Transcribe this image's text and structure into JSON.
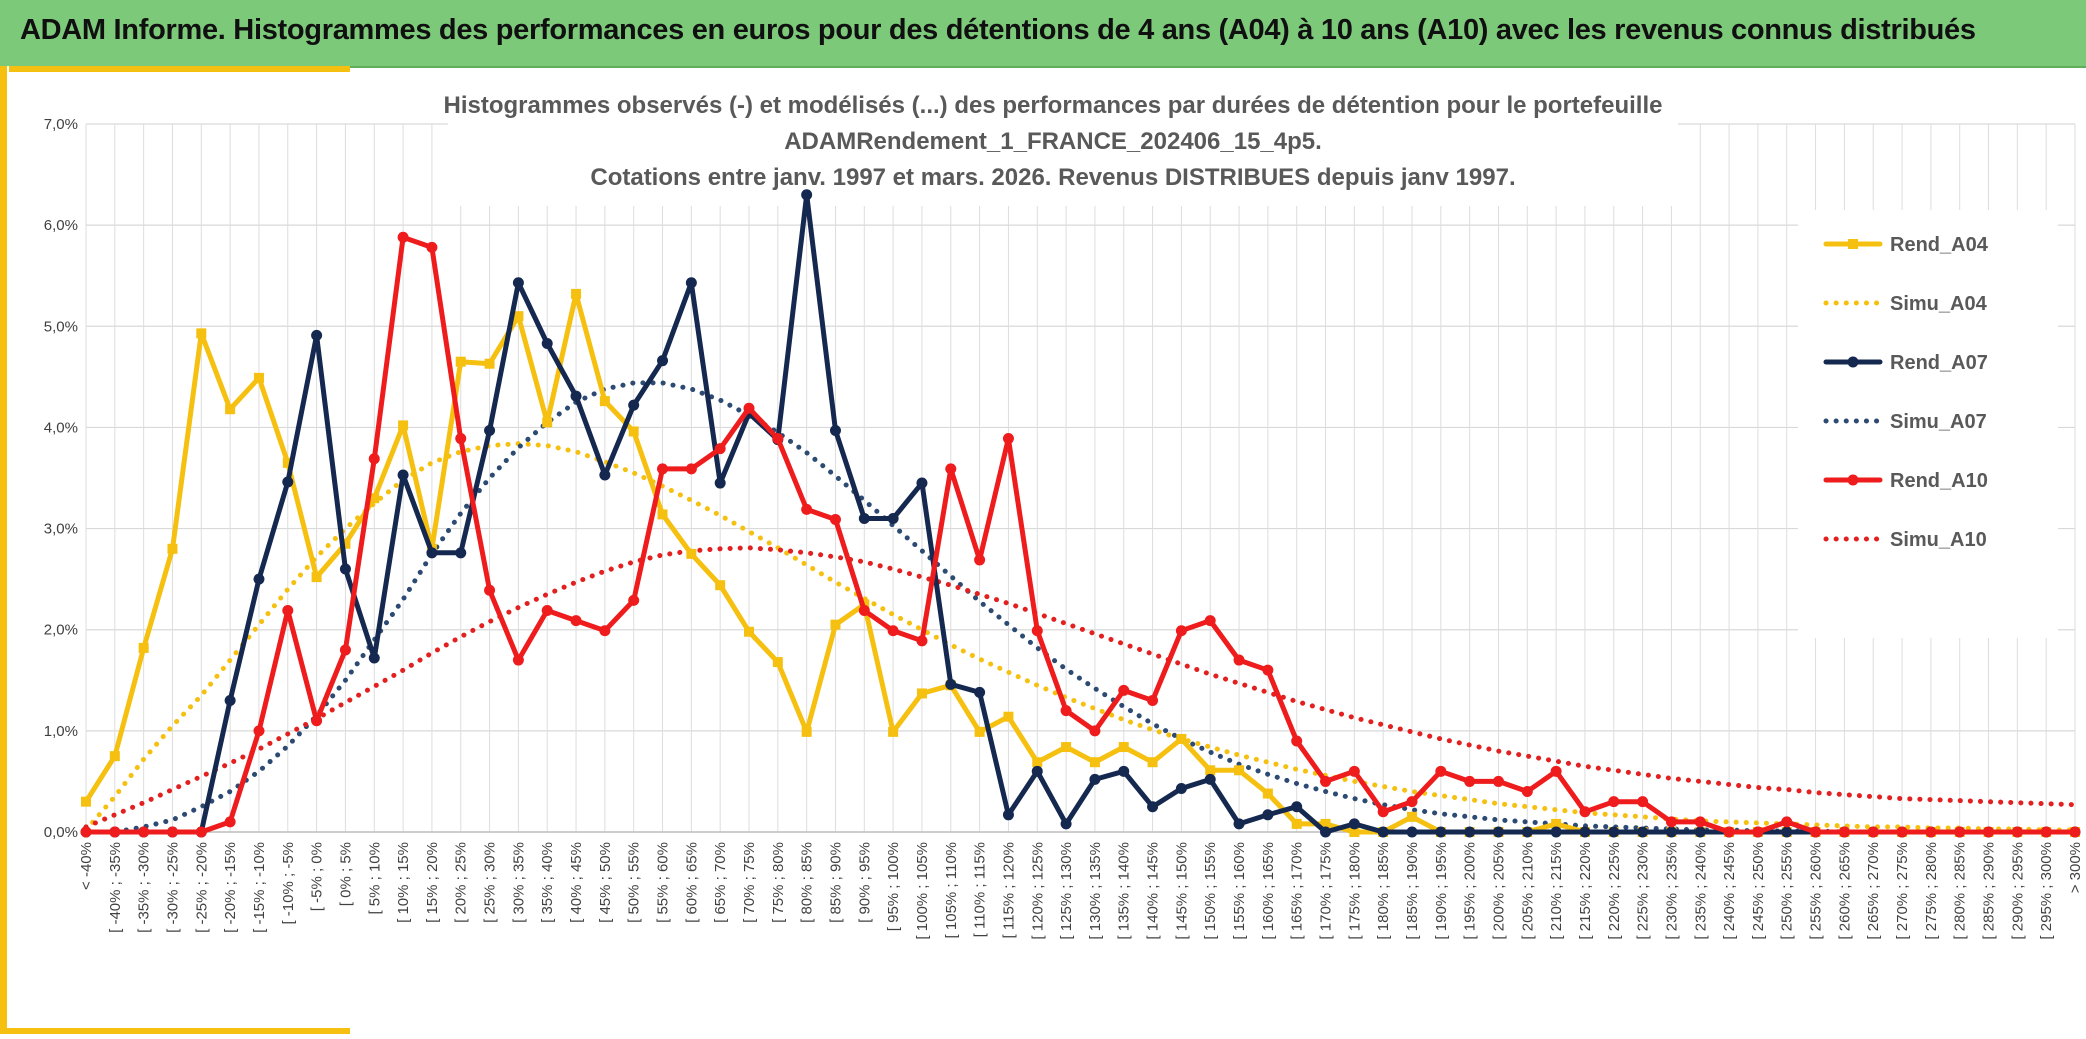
{
  "header": {
    "title": "ADAM Informe. Histogrammes des performances en euros pour des détentions de 4 ans (A04) à 10 ans (A10) avec les revenus connus distribués"
  },
  "chart_data": {
    "type": "line",
    "title_lines": [
      "Histogrammes observés (-) et modélisés (...) des performances par durées de détention pour le portefeuille",
      "ADAMRendement_1_FRANCE_202406_15_4p5.",
      "Cotations entre janv. 1997 et mars. 2026. Revenus DISTRIBUES depuis janv 1997."
    ],
    "ylim": [
      0,
      7
    ],
    "yticks": [
      "0,0%",
      "1,0%",
      "2,0%",
      "3,0%",
      "4,0%",
      "5,0%",
      "6,0%",
      "7,0%"
    ],
    "grid": true,
    "legend_position": "right",
    "categories": [
      "< -40%",
      "[ -40% ; -35%",
      "[ -35% ; -30%",
      "[ -30% ; -25%",
      "[ -25% ; -20%",
      "[ -20% ; -15%",
      "[ -15% ; -10%",
      "[ -10% ; -5%",
      "[ -5% ; 0%",
      "[ 0% ; 5%",
      "[ 5% ; 10%",
      "[ 10% ; 15%",
      "[ 15% ; 20%",
      "[ 20% ; 25%",
      "[ 25% ; 30%",
      "[ 30% ; 35%",
      "[ 35% ; 40%",
      "[ 40% ; 45%",
      "[ 45% ; 50%",
      "[ 50% ; 55%",
      "[ 55% ; 60%",
      "[ 60% ; 65%",
      "[ 65% ; 70%",
      "[ 70% ; 75%",
      "[ 75% ; 80%",
      "[ 80% ; 85%",
      "[ 85% ; 90%",
      "[ 90% ; 95%",
      "[ 95% ; 100%",
      "[ 100% ; 105%",
      "[ 105% ; 110%",
      "[ 110% ; 115%",
      "[ 115% ; 120%",
      "[ 120% ; 125%",
      "[ 125% ; 130%",
      "[ 130% ; 135%",
      "[ 135% ; 140%",
      "[ 140% ; 145%",
      "[ 145% ; 150%",
      "[ 150% ; 155%",
      "[ 155% ; 160%",
      "[ 160% ; 165%",
      "[ 165% ; 170%",
      "[ 170% ; 175%",
      "[ 175% ; 180%",
      "[ 180% ; 185%",
      "[ 185% ; 190%",
      "[ 190% ; 195%",
      "[ 195% ; 200%",
      "[ 200% ; 205%",
      "[ 205% ; 210%",
      "[ 210% ; 215%",
      "[ 215% ; 220%",
      "[ 220% ; 225%",
      "[ 225% ; 230%",
      "[ 230% ; 235%",
      "[ 235% ; 240%",
      "[ 240% ; 245%",
      "[ 245% ; 250%",
      "[ 250% ; 255%",
      "[ 255% ; 260%",
      "[ 260% ; 265%",
      "[ 265% ; 270%",
      "[ 270% ; 275%",
      "[ 275% ; 280%",
      "[ 280% ; 285%",
      "[ 285% ; 290%",
      "[ 290% ; 295%",
      "[ 295% ; 300%",
      "> 300%"
    ],
    "series": [
      {
        "name": "Rend_A04",
        "style": "solid",
        "marker": "square",
        "color": "#f5c010",
        "values": [
          0.3,
          0.75,
          1.82,
          2.8,
          4.93,
          4.18,
          4.49,
          3.65,
          2.52,
          2.85,
          3.3,
          4.02,
          2.8,
          4.65,
          4.63,
          5.1,
          4.05,
          5.32,
          4.26,
          3.96,
          3.14,
          2.75,
          2.44,
          1.98,
          1.68,
          0.99,
          2.05,
          2.25,
          0.99,
          1.37,
          1.45,
          0.99,
          1.14,
          0.69,
          0.84,
          0.69,
          0.84,
          0.69,
          0.92,
          0.61,
          0.61,
          0.38,
          0.08,
          0.08,
          0.0,
          0.0,
          0.15,
          0.0,
          0.0,
          0.0,
          0.0,
          0.08,
          0.0,
          0.0,
          0.0,
          0.0,
          0.0,
          0.0,
          0.0,
          0.0,
          0.0,
          0.0,
          0.0,
          0.0,
          0.0,
          0.0,
          0.0,
          0.0,
          0.0,
          0.0
        ]
      },
      {
        "name": "Simu_A04",
        "style": "dotted",
        "marker": "none",
        "color": "#f5c010",
        "values": [
          0.02,
          0.35,
          0.72,
          1.05,
          1.35,
          1.7,
          2.05,
          2.4,
          2.72,
          3.0,
          3.25,
          3.48,
          3.65,
          3.76,
          3.82,
          3.84,
          3.82,
          3.76,
          3.66,
          3.55,
          3.42,
          3.28,
          3.13,
          2.97,
          2.81,
          2.64,
          2.47,
          2.31,
          2.15,
          2.0,
          1.85,
          1.71,
          1.58,
          1.45,
          1.33,
          1.22,
          1.11,
          1.01,
          0.92,
          0.84,
          0.76,
          0.69,
          0.62,
          0.56,
          0.5,
          0.45,
          0.4,
          0.36,
          0.32,
          0.28,
          0.25,
          0.22,
          0.19,
          0.17,
          0.15,
          0.13,
          0.11,
          0.1,
          0.09,
          0.08,
          0.07,
          0.06,
          0.05,
          0.05,
          0.04,
          0.04,
          0.03,
          0.03,
          0.02,
          0.02
        ]
      },
      {
        "name": "Rend_A07",
        "style": "solid",
        "marker": "circle",
        "color": "#15284f",
        "values": [
          0.0,
          0.0,
          0.0,
          0.0,
          0.0,
          1.3,
          2.5,
          3.46,
          4.91,
          2.6,
          1.72,
          3.53,
          2.76,
          2.76,
          3.97,
          5.43,
          4.83,
          4.31,
          3.53,
          4.22,
          4.66,
          5.43,
          3.45,
          4.14,
          3.88,
          6.3,
          3.97,
          3.1,
          3.1,
          3.45,
          1.46,
          1.38,
          0.17,
          0.6,
          0.08,
          0.52,
          0.6,
          0.25,
          0.43,
          0.52,
          0.08,
          0.17,
          0.25,
          0.0,
          0.08,
          0.0,
          0.0,
          0.0,
          0.0,
          0.0,
          0.0,
          0.0,
          0.0,
          0.0,
          0.0,
          0.0,
          0.0,
          0.0,
          0.0,
          0.0,
          0.0,
          0.0,
          0.0,
          0.0,
          0.0,
          0.0,
          0.0,
          0.0,
          0.0,
          0.0
        ]
      },
      {
        "name": "Simu_A07",
        "style": "dotted",
        "marker": "none",
        "color": "#2c4a72",
        "values": [
          0.0,
          0.0,
          0.05,
          0.12,
          0.25,
          0.4,
          0.6,
          0.85,
          1.15,
          1.5,
          1.9,
          2.3,
          2.75,
          3.15,
          3.5,
          3.8,
          4.05,
          4.25,
          4.38,
          4.44,
          4.44,
          4.38,
          4.27,
          4.12,
          3.95,
          3.75,
          3.52,
          3.28,
          3.03,
          2.78,
          2.53,
          2.28,
          2.05,
          1.82,
          1.61,
          1.42,
          1.24,
          1.07,
          0.92,
          0.79,
          0.67,
          0.57,
          0.48,
          0.4,
          0.33,
          0.27,
          0.22,
          0.18,
          0.15,
          0.12,
          0.1,
          0.08,
          0.06,
          0.05,
          0.04,
          0.03,
          0.02,
          0.02,
          0.01,
          0.01,
          0.01,
          0.0,
          0.0,
          0.0,
          0.0,
          0.0,
          0.0,
          0.0,
          0.0,
          0.0
        ]
      },
      {
        "name": "Rend_A10",
        "style": "solid",
        "marker": "circle",
        "color": "#ee1c1c",
        "values": [
          0.0,
          0.0,
          0.0,
          0.0,
          0.0,
          0.1,
          1.0,
          2.19,
          1.1,
          1.8,
          3.69,
          5.88,
          5.78,
          3.89,
          2.39,
          1.7,
          2.19,
          2.09,
          1.99,
          2.29,
          3.59,
          3.59,
          3.79,
          4.19,
          3.89,
          3.19,
          3.09,
          2.19,
          1.99,
          1.89,
          3.59,
          2.69,
          3.89,
          1.99,
          1.2,
          1.0,
          1.4,
          1.3,
          1.99,
          2.09,
          1.7,
          1.6,
          0.9,
          0.5,
          0.6,
          0.2,
          0.3,
          0.6,
          0.5,
          0.5,
          0.4,
          0.6,
          0.2,
          0.3,
          0.3,
          0.1,
          0.1,
          0.0,
          0.0,
          0.1,
          0.0,
          0.0,
          0.0,
          0.0,
          0.0,
          0.0,
          0.0,
          0.0,
          0.0,
          0.0
        ]
      },
      {
        "name": "Simu_A10",
        "style": "dotted",
        "marker": "none",
        "color": "#e22020",
        "values": [
          0.05,
          0.17,
          0.29,
          0.42,
          0.55,
          0.68,
          0.82,
          0.97,
          1.12,
          1.28,
          1.44,
          1.6,
          1.77,
          1.93,
          2.08,
          2.22,
          2.35,
          2.47,
          2.58,
          2.67,
          2.74,
          2.78,
          2.8,
          2.81,
          2.79,
          2.76,
          2.72,
          2.67,
          2.6,
          2.52,
          2.44,
          2.35,
          2.26,
          2.16,
          2.06,
          1.96,
          1.86,
          1.76,
          1.66,
          1.56,
          1.47,
          1.38,
          1.29,
          1.21,
          1.13,
          1.06,
          0.99,
          0.92,
          0.86,
          0.8,
          0.75,
          0.7,
          0.65,
          0.61,
          0.57,
          0.53,
          0.5,
          0.47,
          0.44,
          0.42,
          0.39,
          0.37,
          0.35,
          0.33,
          0.32,
          0.31,
          0.3,
          0.29,
          0.28,
          0.27
        ]
      }
    ]
  }
}
